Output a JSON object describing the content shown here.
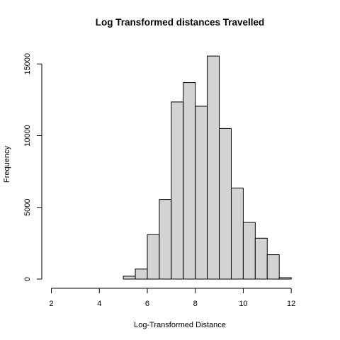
{
  "chart_data": {
    "type": "bar",
    "title": "Log Transformed distances Travelled",
    "xlabel": "Log-Transformed Distance",
    "ylabel": "Frequency",
    "xlim": [
      1.6,
      13
    ],
    "ylim": [
      0,
      16000
    ],
    "x_ticks": [
      2,
      4,
      6,
      8,
      10,
      12
    ],
    "y_ticks": [
      0,
      5000,
      10000,
      15000
    ],
    "bin_edges": [
      2,
      2.5,
      3,
      3.5,
      4,
      4.5,
      5,
      5.5,
      6,
      6.5,
      7,
      7.5,
      8,
      8.5,
      9,
      9.5,
      10,
      10.5,
      11,
      11.5,
      12,
      12.5
    ],
    "values": [
      0,
      0,
      0,
      0,
      0,
      0,
      200,
      700,
      3100,
      5550,
      12350,
      13700,
      12050,
      15550,
      10500,
      6350,
      3950,
      2850,
      1700,
      100,
      0
    ],
    "grid": false,
    "bar_fill": "#d3d3d3",
    "bar_stroke": "#000000"
  }
}
